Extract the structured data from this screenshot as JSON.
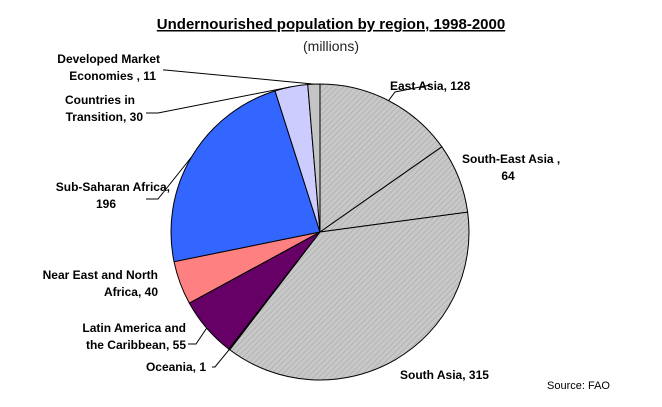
{
  "chart_data": {
    "type": "pie",
    "title": "Undernourished population by region, 1998-2000",
    "subtitle": "(millions)",
    "source": "Source: FAO",
    "slices": [
      {
        "id": "east-asia",
        "label": [
          "East Asia,  128"
        ],
        "value": 128,
        "color": "#c4c4c4",
        "pattern": true
      },
      {
        "id": "south-east-asia",
        "label": [
          "South-East Asia ,",
          "64"
        ],
        "value": 64,
        "color": "#c4c4c4",
        "pattern": true
      },
      {
        "id": "south-asia",
        "label": [
          "South Asia,  315"
        ],
        "value": 315,
        "color": "#c4c4c4",
        "pattern": true
      },
      {
        "id": "oceania",
        "label": [
          "Oceania,    1"
        ],
        "value": 1,
        "color": "#c4c4c4",
        "pattern": true
      },
      {
        "id": "latin-america-caribbean",
        "label": [
          "Latin America and",
          "the Caribbean,  55"
        ],
        "value": 55,
        "color": "#660066",
        "pattern": false
      },
      {
        "id": "near-east-north-africa",
        "label": [
          "Near East and North",
          "Africa,  40"
        ],
        "value": 40,
        "color": "#ff8080",
        "pattern": false
      },
      {
        "id": "sub-saharan-africa",
        "label": [
          "Sub-Saharan Africa,",
          "196"
        ],
        "value": 196,
        "color": "#3366ff",
        "pattern": false
      },
      {
        "id": "countries-in-transition",
        "label": [
          "Countries in",
          "Transition,  30"
        ],
        "value": 30,
        "color": "#ccccff",
        "pattern": false
      },
      {
        "id": "developed-market-economies",
        "label": [
          "Developed Market",
          "Economies ,  11"
        ],
        "value": 11,
        "color": "#c4c4c4",
        "pattern": false
      }
    ]
  }
}
